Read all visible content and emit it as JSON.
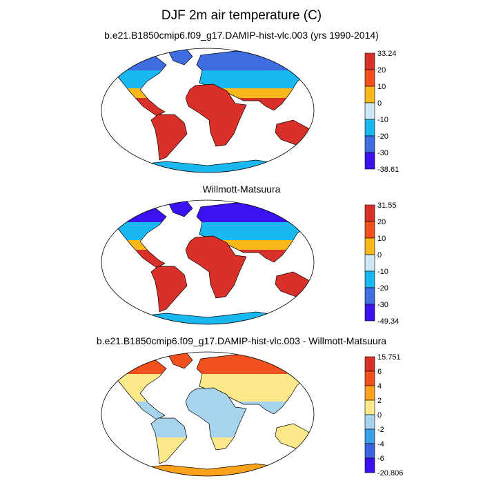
{
  "title": "DJF 2m air temperature (C)",
  "chart_data": [
    {
      "type": "heatmap",
      "title": "b.e21.B1850cmip6.f09_g17.DAMIP-hist-vlc.003 (yrs 1990-2014)",
      "projection": "Robinson",
      "colorbar": {
        "labels": [
          "33.24",
          "20",
          "10",
          "0",
          "-10",
          "-20",
          "-30",
          "-38.61"
        ],
        "levels": [
          33.24,
          20,
          10,
          0,
          -10,
          -20,
          -30,
          -38.61
        ],
        "colors": [
          "#d9302a",
          "#f2501c",
          "#fbb81b",
          "#cfe8f6",
          "#19b8f0",
          "#3d6de0",
          "#3b13f2"
        ]
      },
      "regions": [
        {
          "name": "arctic",
          "band": 5
        },
        {
          "name": "north_mid",
          "band": 4
        },
        {
          "name": "north_sub",
          "band": 2
        },
        {
          "name": "tropics",
          "band": 0
        },
        {
          "name": "southern",
          "band": 0
        },
        {
          "name": "antarctica",
          "band": 4
        }
      ]
    },
    {
      "type": "heatmap",
      "title": "Willmott-Matsuura",
      "projection": "Robinson",
      "colorbar": {
        "labels": [
          "31.55",
          "20",
          "10",
          "0",
          "-10",
          "-20",
          "-30",
          "-49.34"
        ],
        "levels": [
          31.55,
          20,
          10,
          0,
          -10,
          -20,
          -30,
          -49.34
        ],
        "colors": [
          "#d9302a",
          "#f2501c",
          "#fbb81b",
          "#cfe8f6",
          "#19b8f0",
          "#3d6de0",
          "#3b13f2"
        ]
      },
      "regions": [
        {
          "name": "arctic",
          "band": 6
        },
        {
          "name": "north_mid",
          "band": 4
        },
        {
          "name": "north_sub",
          "band": 2
        },
        {
          "name": "tropics",
          "band": 0
        },
        {
          "name": "southern",
          "band": 0
        },
        {
          "name": "antarctica",
          "band": 4
        }
      ]
    },
    {
      "type": "heatmap",
      "title": "b.e21.B1850cmip6.f09_g17.DAMIP-hist-vlc.003 - Willmott-Matsuura",
      "projection": "Robinson",
      "colorbar": {
        "labels": [
          "15.751",
          "6",
          "4",
          "2",
          "0",
          "-2",
          "-4",
          "-6",
          "-20.806"
        ],
        "levels": [
          15.751,
          6,
          4,
          2,
          0,
          -2,
          -4,
          -6,
          -20.806
        ],
        "colors": [
          "#d9302a",
          "#f2501c",
          "#fca11c",
          "#fde98a",
          "#a6d4ef",
          "#3aa0ea",
          "#3b64df",
          "#3b13f2"
        ]
      },
      "regions": [
        {
          "name": "arctic",
          "band": 1
        },
        {
          "name": "north_mid",
          "band": 3
        },
        {
          "name": "north_sub",
          "band": 3
        },
        {
          "name": "tropics",
          "band": 4
        },
        {
          "name": "southern",
          "band": 3
        },
        {
          "name": "antarctica",
          "band": 2
        }
      ]
    }
  ]
}
